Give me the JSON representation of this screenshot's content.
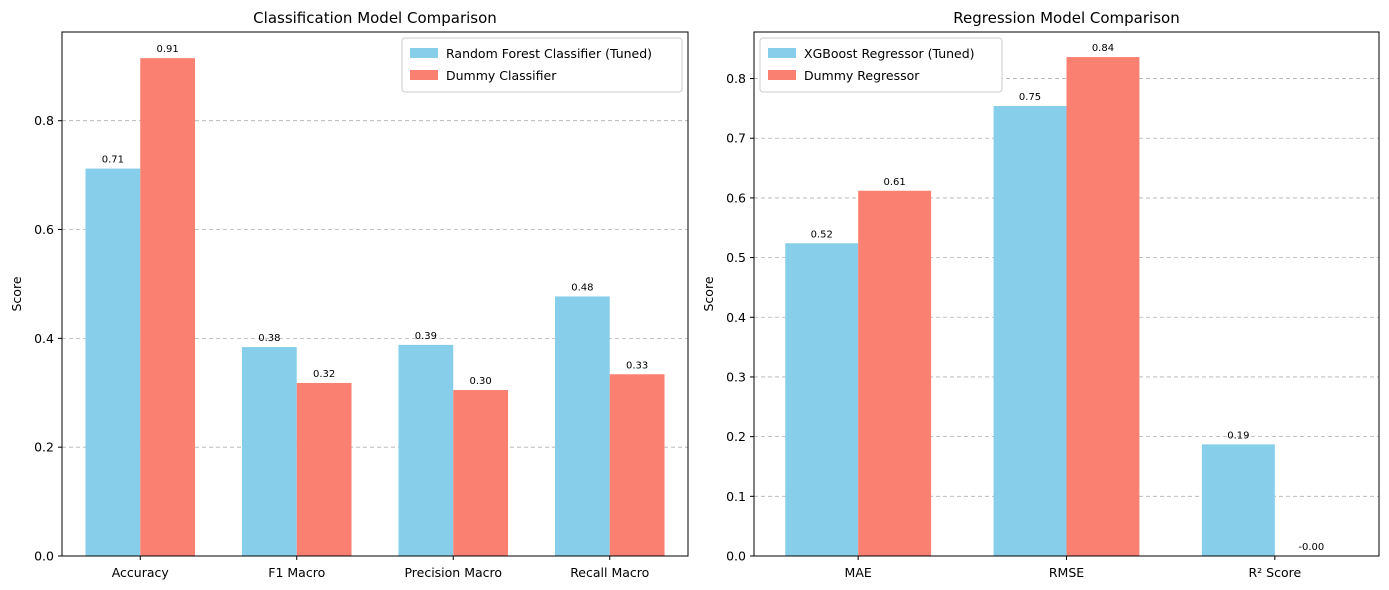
{
  "chart_data": [
    {
      "type": "bar",
      "title": "Classification Model Comparison",
      "xlabel": "",
      "ylabel": "Score",
      "ylim": [
        0,
        0.963
      ],
      "yticks": [
        "0.0",
        "0.2",
        "0.4",
        "0.6",
        "0.8"
      ],
      "yticks_values": [
        0,
        0.2,
        0.4,
        0.6,
        0.8
      ],
      "grid": "y-dashed",
      "legend_position": "top-right",
      "categories": [
        "Accuracy",
        "F1 Macro",
        "Precision Macro",
        "Recall Macro"
      ],
      "series": [
        {
          "name": "Random Forest Classifier (Tuned)",
          "color": "#87CEEB",
          "values": [
            0.712,
            0.384,
            0.388,
            0.477
          ],
          "labels": [
            "0.71",
            "0.38",
            "0.39",
            "0.48"
          ]
        },
        {
          "name": "Dummy Classifier",
          "color": "#FA8072",
          "values": [
            0.915,
            0.318,
            0.305,
            0.334
          ],
          "labels": [
            "0.91",
            "0.32",
            "0.30",
            "0.33"
          ]
        }
      ]
    },
    {
      "type": "bar",
      "title": "Regression Model Comparison",
      "xlabel": "",
      "ylabel": "Score",
      "ylim": [
        0,
        0.878
      ],
      "yticks": [
        "0.0",
        "0.1",
        "0.2",
        "0.3",
        "0.4",
        "0.5",
        "0.6",
        "0.7",
        "0.8"
      ],
      "yticks_values": [
        0,
        0.1,
        0.2,
        0.3,
        0.4,
        0.5,
        0.6,
        0.7,
        0.8
      ],
      "grid": "y-dashed",
      "legend_position": "top-left",
      "categories": [
        "MAE",
        "RMSE",
        "R² Score"
      ],
      "series": [
        {
          "name": "XGBoost Regressor (Tuned)",
          "color": "#87CEEB",
          "values": [
            0.524,
            0.754,
            0.187
          ],
          "labels": [
            "0.52",
            "0.75",
            "0.19"
          ]
        },
        {
          "name": "Dummy Regressor",
          "color": "#FA8072",
          "values": [
            0.612,
            0.836,
            -0.0
          ],
          "labels": [
            "0.61",
            "0.84",
            "-0.00"
          ]
        }
      ]
    }
  ]
}
